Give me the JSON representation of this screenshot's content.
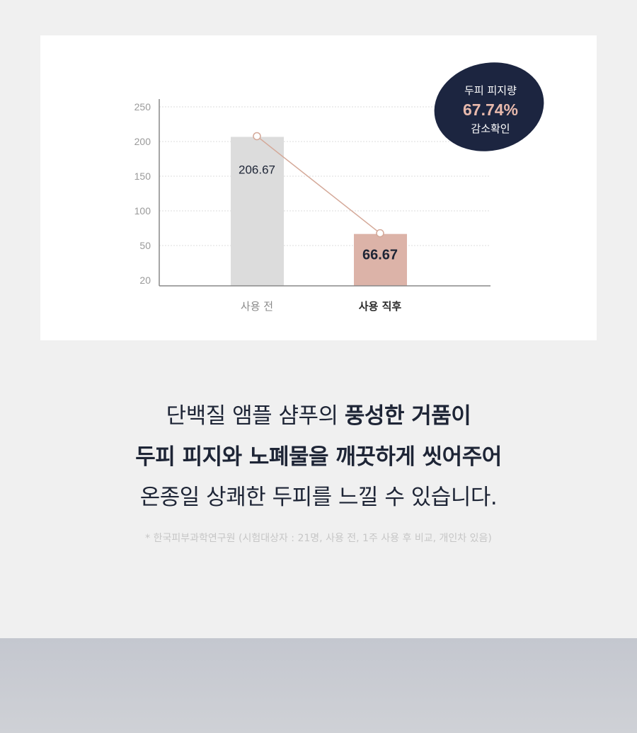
{
  "chart_data": {
    "type": "bar",
    "categories": [
      "사용 전",
      "사용 직후"
    ],
    "values": [
      206.67,
      66.67
    ],
    "data_labels": [
      "206.67",
      "66.67"
    ],
    "y_ticks": [
      20,
      50,
      100,
      150,
      200,
      250
    ],
    "ylim": [
      20,
      250
    ],
    "grid": true,
    "overlay_line": true,
    "colors": {
      "before": "#dcdcdc",
      "after": "#dcb3a8",
      "line": "#d4a898",
      "axis": "#888888"
    }
  },
  "badge": {
    "line1": "두피 피지량",
    "value": "67.74%",
    "line3": "감소확인",
    "bg": "#1c2540",
    "accent": "#e8b9ac"
  },
  "copy": {
    "line1_a": "단백질 앰플 샴푸의 ",
    "line1_b": "풍성한 거품이",
    "line2": "두피 피지와 노폐물을 깨끗하게 씻어주어",
    "line3": "온종일 상쾌한 두피를 느낄 수 있습니다."
  },
  "footnote": "* 한국피부과학연구원 (시험대상자 : 21명, 사용 전, 1주 사용 후 비교, 개인차 있음)"
}
